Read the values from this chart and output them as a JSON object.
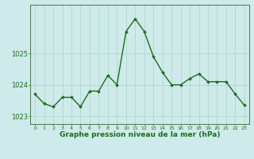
{
  "x": [
    0,
    1,
    2,
    3,
    4,
    5,
    6,
    7,
    8,
    9,
    10,
    11,
    12,
    13,
    14,
    15,
    16,
    17,
    18,
    19,
    20,
    21,
    22,
    23
  ],
  "y": [
    1023.7,
    1023.4,
    1023.3,
    1023.6,
    1023.6,
    1023.3,
    1023.8,
    1023.8,
    1024.3,
    1024.0,
    1025.7,
    1026.1,
    1025.7,
    1024.9,
    1024.4,
    1024.0,
    1024.0,
    1024.2,
    1024.35,
    1024.1,
    1024.1,
    1024.1,
    1023.7,
    1023.35
  ],
  "line_color": "#1a6e1a",
  "marker": "D",
  "marker_size": 2.0,
  "bg_color": "#ceeaea",
  "grid_color": "#a8d5c8",
  "xlabel": "Graphe pression niveau de la mer (hPa)",
  "xlabel_fontsize": 6.5,
  "yticks": [
    1023,
    1024,
    1025
  ],
  "xticks": [
    0,
    1,
    2,
    3,
    4,
    5,
    6,
    7,
    8,
    9,
    10,
    11,
    12,
    13,
    14,
    15,
    16,
    17,
    18,
    19,
    20,
    21,
    22,
    23
  ],
  "ytick_fontsize": 6.0,
  "xtick_fontsize": 4.5,
  "ylim": [
    1022.75,
    1026.55
  ],
  "xlim": [
    -0.5,
    23.5
  ],
  "line_width": 1.0,
  "spine_color": "#336633"
}
